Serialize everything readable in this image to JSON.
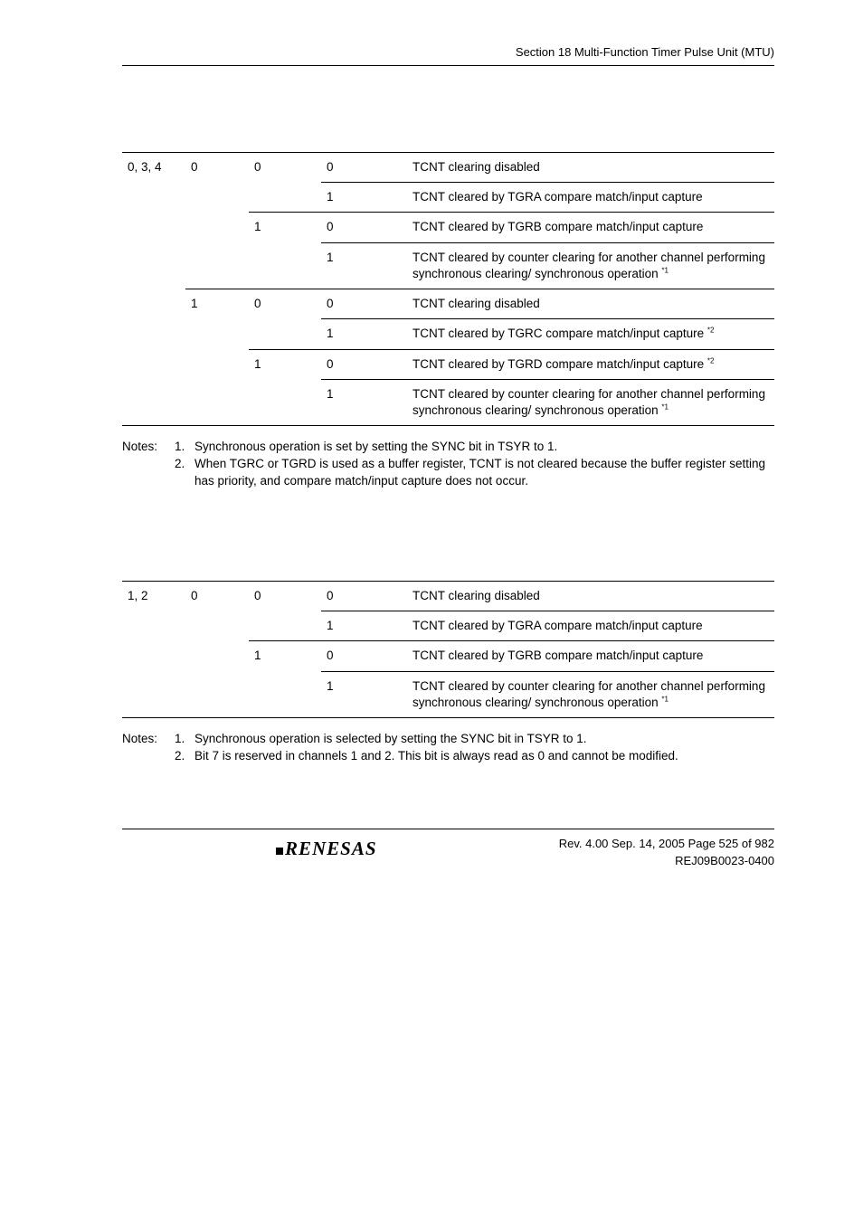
{
  "header": {
    "running": "Section 18   Multi-Function Timer Pulse Unit (MTU)"
  },
  "table1": {
    "rows": [
      {
        "ch": "0, 3, 4",
        "b7": "0",
        "b6": "0",
        "b5": "0",
        "desc": "TCNT clearing disabled",
        "border": {
          "ch": "first",
          "b7": "first",
          "b6": "first",
          "b5": "first",
          "desc": "first"
        }
      },
      {
        "ch": "",
        "b7": "",
        "b6": "",
        "b5": "1",
        "desc": "TCNT cleared by TGRA compare match/input capture",
        "border": {
          "ch": "no",
          "b7": "no",
          "b6": "no",
          "b5": "thin",
          "desc": "thin"
        }
      },
      {
        "ch": "",
        "b7": "",
        "b6": "1",
        "b5": "0",
        "desc": "TCNT cleared by TGRB compare match/input capture",
        "border": {
          "ch": "no",
          "b7": "no",
          "b6": "thin",
          "b5": "thin",
          "desc": "thin"
        }
      },
      {
        "ch": "",
        "b7": "",
        "b6": "",
        "b5": "1",
        "desc": "TCNT cleared by counter clearing for another channel performing synchronous clearing/ synchronous operation ",
        "fn": "*1",
        "border": {
          "ch": "no",
          "b7": "no",
          "b6": "no",
          "b5": "thin",
          "desc": "thin"
        }
      },
      {
        "ch": "",
        "b7": "1",
        "b6": "0",
        "b5": "0",
        "desc": "TCNT clearing disabled",
        "border": {
          "ch": "no",
          "b7": "thin",
          "b6": "thin",
          "b5": "thin",
          "desc": "thin"
        }
      },
      {
        "ch": "",
        "b7": "",
        "b6": "",
        "b5": "1",
        "desc": "TCNT cleared by TGRC compare match/input capture ",
        "fn": "*2",
        "border": {
          "ch": "no",
          "b7": "no",
          "b6": "no",
          "b5": "thin",
          "desc": "thin"
        }
      },
      {
        "ch": "",
        "b7": "",
        "b6": "1",
        "b5": "0",
        "desc": "TCNT cleared by TGRD compare match/input capture ",
        "fn": "*2",
        "border": {
          "ch": "no",
          "b7": "no",
          "b6": "thin",
          "b5": "thin",
          "desc": "thin"
        }
      },
      {
        "ch": "",
        "b7": "",
        "b6": "",
        "b5": "1",
        "desc": "TCNT cleared by counter clearing for another channel performing synchronous clearing/ synchronous operation ",
        "fn": "*1",
        "border": {
          "ch": "no",
          "b7": "no",
          "b6": "no",
          "b5": "thin",
          "desc": "thin"
        },
        "last": true
      }
    ]
  },
  "notes1": [
    {
      "label": "Notes:",
      "num": "1.",
      "text": "Synchronous operation is set by setting the SYNC bit in TSYR to 1."
    },
    {
      "label": "",
      "num": "2.",
      "text": "When TGRC or TGRD is used as a buffer register, TCNT is not cleared because the buffer register setting has priority, and compare match/input capture does not occur."
    }
  ],
  "table2": {
    "rows": [
      {
        "ch": "1, 2",
        "b7": "0",
        "b6": "0",
        "b5": "0",
        "desc": "TCNT clearing disabled",
        "border": {
          "ch": "first",
          "b7": "first",
          "b6": "first",
          "b5": "first",
          "desc": "first"
        }
      },
      {
        "ch": "",
        "b7": "",
        "b6": "",
        "b5": "1",
        "desc": "TCNT cleared by TGRA compare match/input capture",
        "border": {
          "ch": "no",
          "b7": "no",
          "b6": "no",
          "b5": "thin",
          "desc": "thin"
        }
      },
      {
        "ch": "",
        "b7": "",
        "b6": "1",
        "b5": "0",
        "desc": "TCNT cleared by TGRB compare match/input capture",
        "border": {
          "ch": "no",
          "b7": "no",
          "b6": "thin",
          "b5": "thin",
          "desc": "thin"
        }
      },
      {
        "ch": "",
        "b7": "",
        "b6": "",
        "b5": "1",
        "desc": "TCNT cleared by counter clearing for another channel performing synchronous clearing/ synchronous operation ",
        "fn": "*1",
        "border": {
          "ch": "no",
          "b7": "no",
          "b6": "no",
          "b5": "thin",
          "desc": "thin"
        },
        "last": true
      }
    ]
  },
  "notes2": [
    {
      "label": "Notes:",
      "num": "1.",
      "text": "Synchronous operation is selected by setting the SYNC bit in TSYR to 1."
    },
    {
      "label": "",
      "num": "2.",
      "text": "Bit 7 is reserved in channels 1 and 2. This bit is always read as 0 and cannot be modified."
    }
  ],
  "footer": {
    "logo": "RENESAS",
    "line1": "Rev. 4.00  Sep. 14, 2005  Page 525 of 982",
    "line2": "REJ09B0023-0400"
  }
}
